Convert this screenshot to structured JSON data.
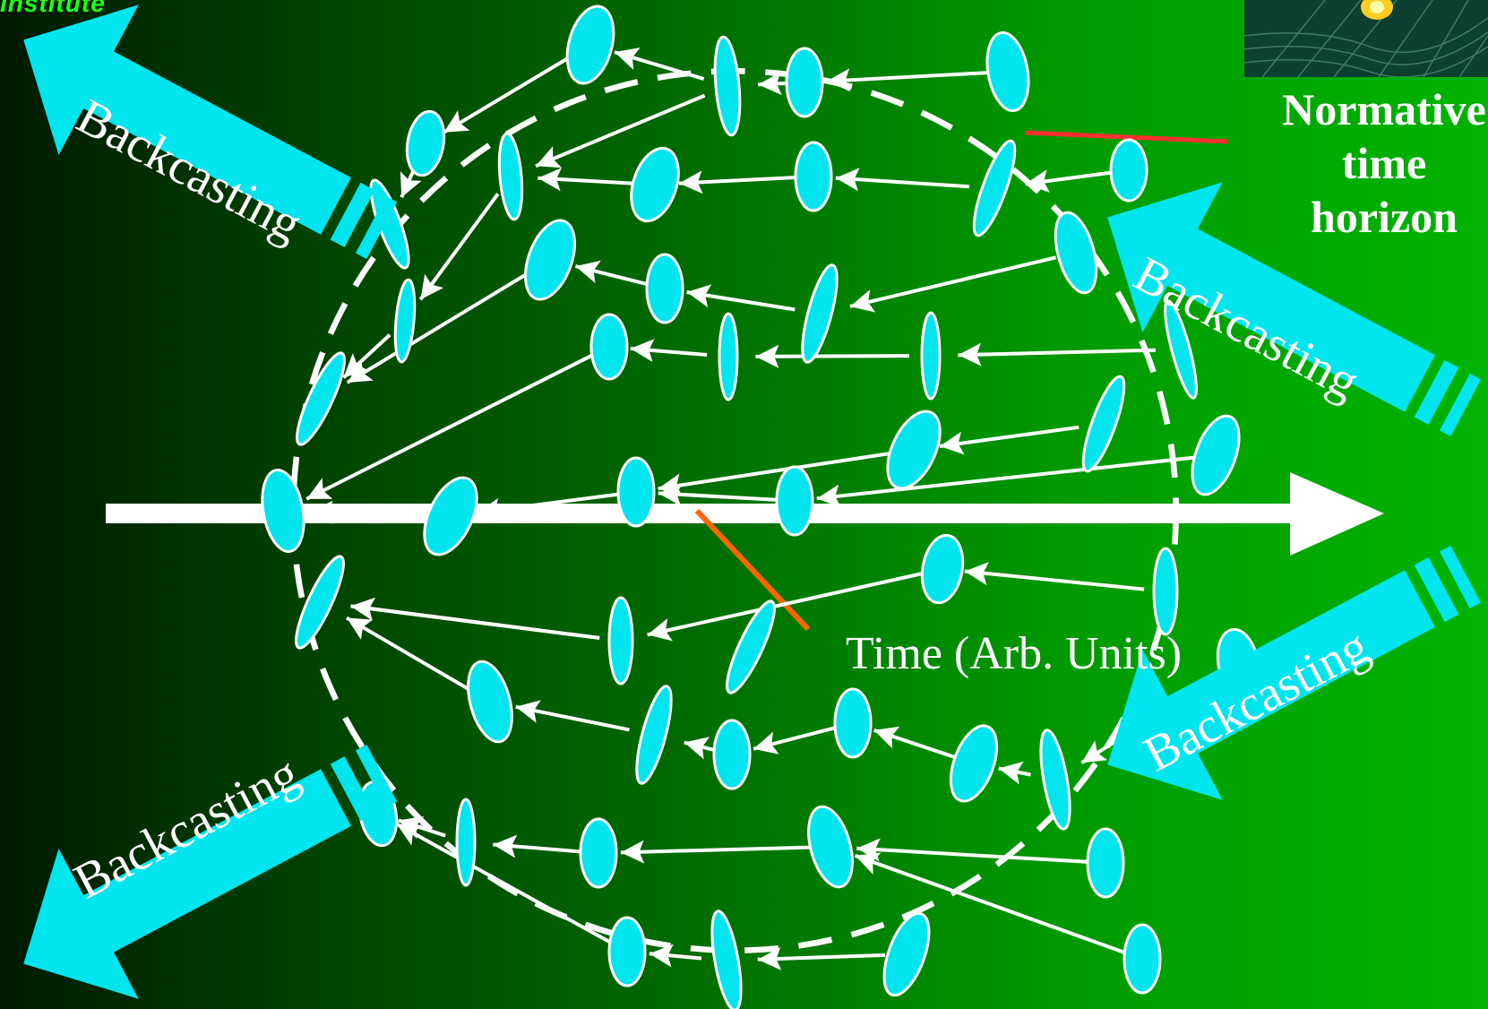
{
  "logo": {
    "text": "Institute"
  },
  "labels": {
    "time_axis": "Time (Arb. Units)",
    "normative_horizon": [
      "Normative",
      "time",
      "horizon"
    ]
  },
  "backcasting_arrows": [
    {
      "label": "Backcasting",
      "direction": "upper-left"
    },
    {
      "label": "Backcasting",
      "direction": "lower-left"
    },
    {
      "label": "Backcasting",
      "direction": "upper-right"
    },
    {
      "label": "Backcasting",
      "direction": "lower-right"
    }
  ],
  "colors": {
    "background_dark": "#001a00",
    "background_bright": "#00b400",
    "node": "#00e5ee",
    "arrow": "#ffffff",
    "backcast_arrow": "#00e5ee",
    "accent_red": "#ff3030",
    "accent_orange": "#ff6600"
  }
}
